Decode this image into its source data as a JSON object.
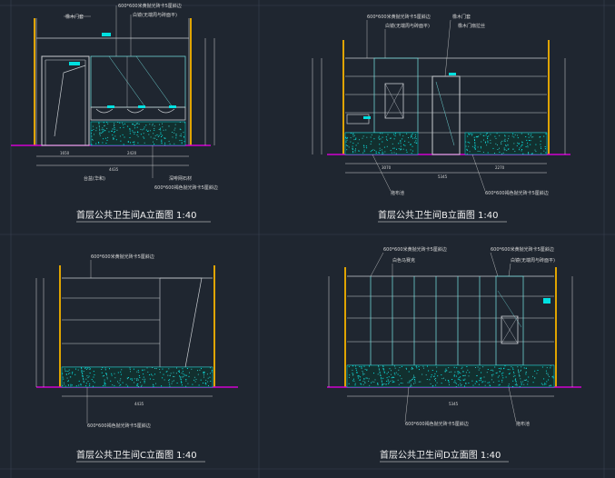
{
  "colors": {
    "background": "#1f2630",
    "gridline": "#3a4250",
    "wall": "#e0a400",
    "floor": "#d000d0",
    "line": "#c8ccd0",
    "glass": "#6fd3d3",
    "dim": "#d8d8d8",
    "accent": "#00e0e0",
    "title": "#f2f2f2"
  },
  "panels": [
    {
      "id": "A",
      "title": "首层公共卫生间A立面图 1:40",
      "annotations": {
        "top_tile": "600*600米黄抛光砖卡5厘斜边",
        "door": "橡木门套",
        "mirror": "白镜(无端周与砖面平)",
        "basin": "台盆(华和)",
        "stone": "深啡网石材",
        "bottom_tile": "600*600褐色抛光砖卡5厘斜边"
      },
      "dims": [
        "1650",
        "2420",
        "4435"
      ]
    },
    {
      "id": "B",
      "title": "首层公共卫生间B立面图 1:40",
      "annotations": {
        "top_tile": "600*600米黄抛光砖卡5厘斜边",
        "mirror": "白镜(无端周与砖面平)",
        "door_frame": "橡木门套",
        "door_leaf": "橡木门扇拉丝",
        "mop": "拖布池",
        "bottom_tile": "600*600褐色抛光砖卡5厘斜边"
      },
      "dims": [
        "3070",
        "2270",
        "5345"
      ]
    },
    {
      "id": "C",
      "title": "首层公共卫生间C立面图 1:40",
      "annotations": {
        "top_tile": "600*600米黄抛光砖卡5厘斜边",
        "bottom_tile": "600*600褐色抛光砖卡5厘斜边"
      },
      "dims": [
        "4435"
      ]
    },
    {
      "id": "D",
      "title": "首层公共卫生间D立面图 1:40",
      "annotations": {
        "top_tile": "600*600米黄抛光砖卡5厘斜边",
        "partition": "白色马赛克",
        "mirror": "白镜(无端周与砖面平)",
        "mop": "拖布池",
        "bottom_tile": "600*600褐色抛光砖卡5厘斜边"
      },
      "dims": [
        "5345"
      ]
    }
  ]
}
